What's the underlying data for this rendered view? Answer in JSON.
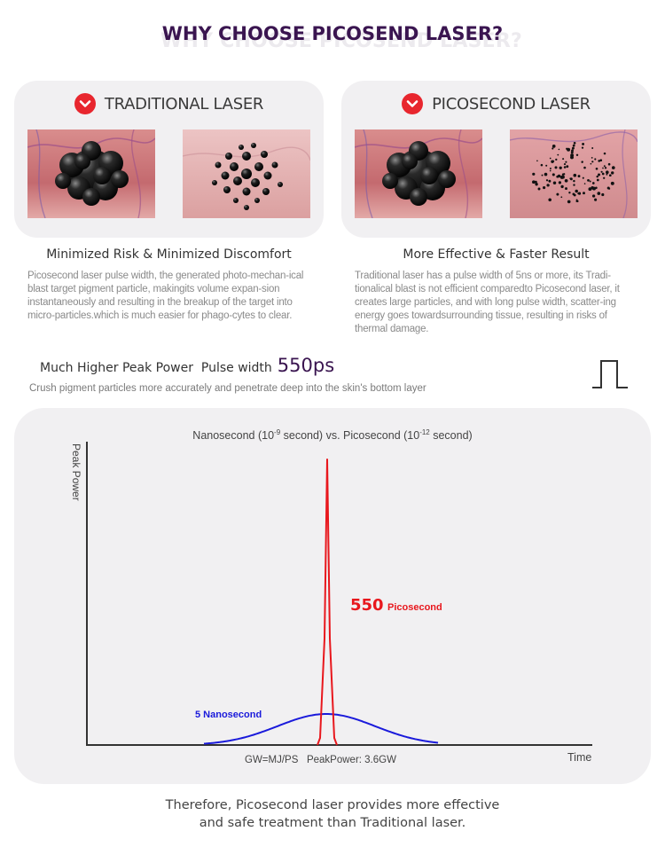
{
  "page": {
    "title": "WHY CHOOSE PICOSEND LASER?",
    "title_shadow": "WHY CHOOSE PICOSEND LASER?"
  },
  "comparison": {
    "left": {
      "icon": "x-circle-icon",
      "title": "TRADITIONAL LASER",
      "subheading": "Minimized Risk & Minimized Discomfort",
      "body": "Picosecond laser pulse width, the generated photo-mechan-ical blast target pigment particle, makingits volume expan-sion instantaneously and resulting in the breakup of the target into micro-particles.which is much easier for phago-cytes to clear."
    },
    "right": {
      "icon": "x-circle-icon",
      "title": "PICOSECOND LASER",
      "subheading": "More Effective & Faster Result",
      "body": "Traditional laser has a pulse width of 5ns or more, its Tradi-tionalical blast is not efficient comparedto Picosecond laser, it creates large particles, and with long pulse width, scatter-ing energy goes towardsurrounding tissue, resulting in risks of thermal damage."
    }
  },
  "power": {
    "label": "Much Higher Peak Power  Pulse width",
    "value": "550ps",
    "subtext": "Crush pigment particles more accurately and penetrate deep into the skin's bottom layer",
    "icon": "pulse-wave-icon"
  },
  "chart": {
    "title_a": "Nanosecond (10",
    "title_a_exp": "-9",
    "title_b": " second) vs. Picosecond  (10",
    "title_b_exp": "-12",
    "title_c": " second)",
    "ylabel": "Peak Power",
    "xlabel": "Time",
    "pico_value": "550",
    "pico_label": "Picosecond",
    "nano_label": "5 Nanosecond",
    "footnote": "GW=MJ/PS   PeakPower: 3.6GW",
    "colors": {
      "pico": "#e8171d",
      "nano": "#1a1adb",
      "axis": "#333333"
    }
  },
  "conclusion": {
    "line1": "Therefore, Picosecond laser provides more effective",
    "line2": "and safe treatment than Traditional laser."
  }
}
